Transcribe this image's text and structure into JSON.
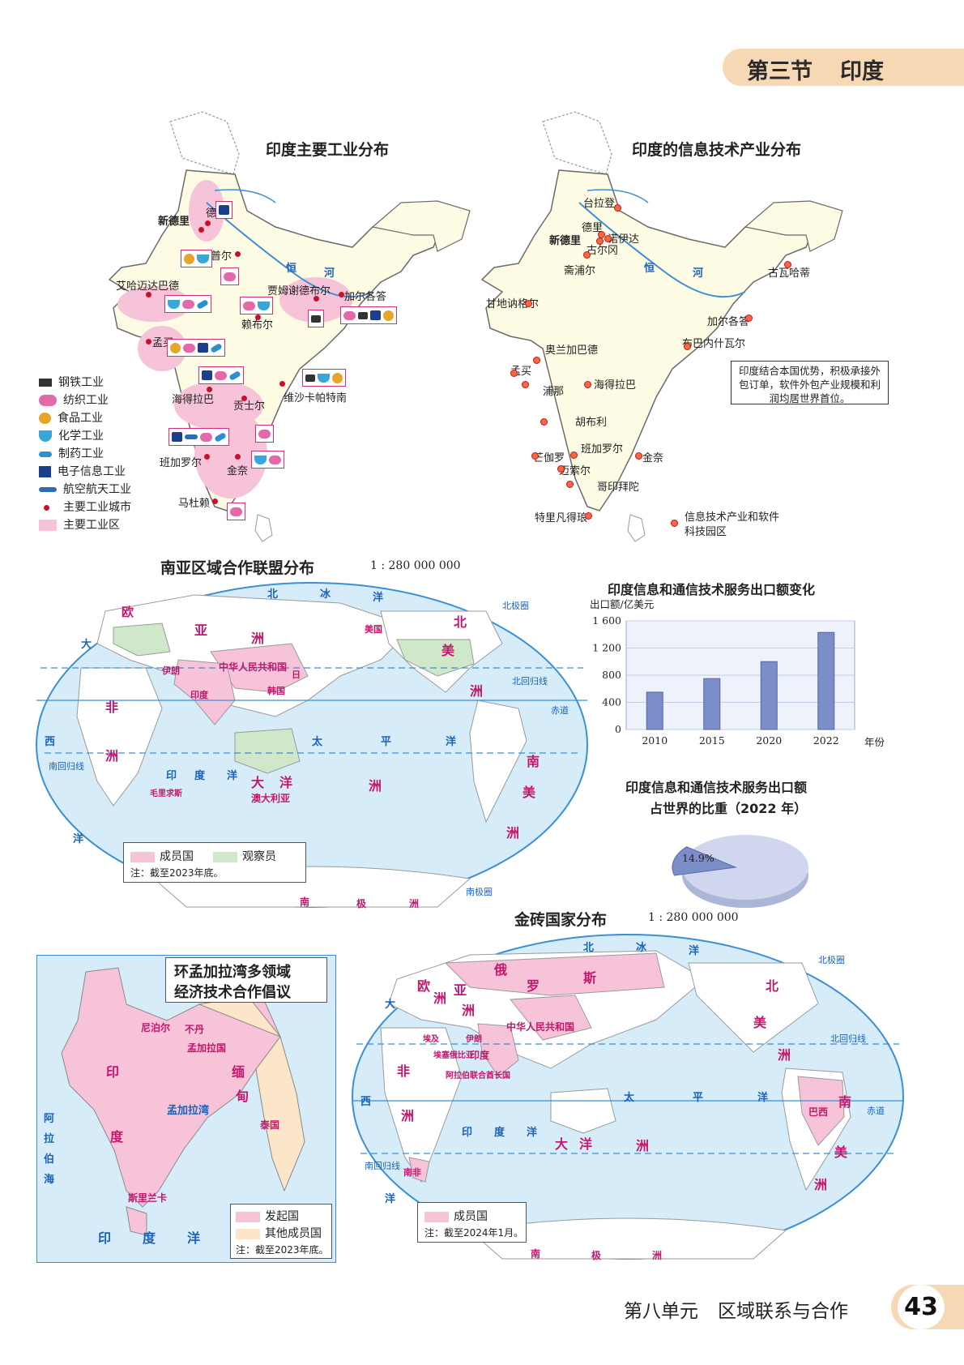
{
  "header": {
    "section": "第三节",
    "country": "印度"
  },
  "industry_map": {
    "title": "印度主要工业分布",
    "cities": [
      "新德里",
      "德里",
      "坎普尔",
      "艾哈迈达巴德",
      "贾姆谢德布尔",
      "加尔各答",
      "赖布尔",
      "孟买",
      "海得拉巴",
      "贡士尔",
      "维沙卡帕特南",
      "班加罗尔",
      "金奈",
      "马杜赖"
    ],
    "river": [
      "恒",
      "河"
    ],
    "legend": [
      "钢铁工业",
      "纺织工业",
      "食品工业",
      "化学工业",
      "制药工业",
      "电子信息工业",
      "航空航天工业",
      "主要工业城市",
      "主要工业区"
    ]
  },
  "it_map": {
    "title": "印度的信息技术产业分布",
    "cities": [
      "台拉登",
      "德里",
      "新德里",
      "诺伊达",
      "古尔冈",
      "斋浦尔",
      "古瓦哈蒂",
      "甘地讷格尔",
      "加尔各答",
      "奥兰加巴德",
      "布巴内什瓦尔",
      "孟买",
      "海得拉巴",
      "浦那",
      "胡布利",
      "芒伽罗",
      "班加罗尔",
      "金奈",
      "迈索尔",
      "哥印拜陀",
      "特里凡得琅"
    ],
    "river": [
      "恒",
      "河"
    ],
    "callout": "印度结合本国优势，积极承接外包订单，软件外包产业规模和利润均居世界首位。",
    "legend": "信息技术产业和软件科技园区"
  },
  "saarc_map": {
    "title": "南亚区域合作联盟分布",
    "scale": "1 : 280 000 000",
    "labels": {
      "north_ocean": [
        "北",
        "冰",
        "洋"
      ],
      "asia": [
        "亚",
        "洲"
      ],
      "europe": [
        "欧"
      ],
      "china": "中华人民共和国",
      "na": [
        "北",
        "美",
        "洲"
      ],
      "africa": [
        "非",
        "洲"
      ],
      "pacific": [
        "太",
        "平",
        "洋"
      ],
      "indian": [
        "印",
        "度",
        "洋"
      ],
      "oceania": [
        "大",
        "洋",
        "洲"
      ],
      "australia": "澳大利亚",
      "sa": [
        "南",
        "美",
        "洲"
      ],
      "atlantic": [
        "大",
        "西",
        "洋"
      ],
      "antarctica": [
        "南",
        "极",
        "洲"
      ],
      "tropic_n": "北回归线",
      "tropic_s": "南回归线",
      "equator": "赤道",
      "arctic_circle": "北极圈",
      "antarctic_circle": "南极圈",
      "usa": "美国",
      "korea": "韩国",
      "japan": "日",
      "iran": "伊朗",
      "india": "印度",
      "mauritius": "毛里求斯"
    },
    "legend": {
      "member": "成员国",
      "observer": "观察员",
      "note": "注：截至2023年底。"
    }
  },
  "bar_chart_title": "印度信息和通信技术服务出口额变化",
  "chart_data": [
    {
      "type": "bar",
      "title": "印度信息和通信技术服务出口额变化",
      "ylabel": "出口额/亿美元",
      "xlabel": "年份",
      "categories": [
        "2010",
        "2015",
        "2020",
        "2022"
      ],
      "values": [
        550,
        750,
        1000,
        1430
      ],
      "ylim": [
        0,
        1600
      ],
      "yticks": [
        "0",
        "400",
        "800",
        "1 200",
        "1 600"
      ],
      "grid": true
    },
    {
      "type": "pie",
      "title": "印度信息和通信技术服务出口额占世界的比重（2022 年）",
      "values": [
        14.9,
        85.1
      ],
      "labels": [
        "14.9%",
        ""
      ]
    }
  ],
  "pie_title_line1": "印度信息和通信技术服务出口额",
  "pie_title_line2": "占世界的比重（2022 年）",
  "pie_label": "14.9%",
  "bimstec_map": {
    "title_line1": "环孟加拉湾多领域",
    "title_line2": "经济技术合作倡议",
    "labels": {
      "india": [
        "印",
        "度"
      ],
      "nepal": "尼泊尔",
      "bhutan": "不丹",
      "bangladesh": "孟加拉国",
      "myanmar": [
        "缅",
        "甸"
      ],
      "thailand": "泰国",
      "srilanka": "斯里兰卡",
      "bay": "孟加拉湾",
      "arabian": [
        "阿",
        "拉",
        "伯",
        "海"
      ],
      "indian_ocean": [
        "印",
        "度",
        "洋"
      ]
    },
    "legend": {
      "founder": "发起国",
      "other": "其他成员国",
      "note": "注：截至2023年底。"
    }
  },
  "brics_map": {
    "title": "金砖国家分布",
    "scale": "1 : 280 000 000",
    "labels": {
      "russia": [
        "俄",
        "罗",
        "斯"
      ],
      "brazil": "巴西",
      "china": "中华人民共和国",
      "india": "印度",
      "south_africa": "南非",
      "egypt": "埃及",
      "ethiopia": "埃塞俄比亚",
      "uae": "阿拉伯联合酋长国",
      "iran": "伊朗",
      "north_ocean": [
        "北",
        "冰",
        "洋"
      ],
      "pacific": [
        "太",
        "平",
        "洋"
      ],
      "indian": [
        "印",
        "度",
        "洋"
      ],
      "atlantic": [
        "大",
        "西",
        "洋"
      ],
      "antarctica": [
        "南",
        "极",
        "洲"
      ],
      "oceania": [
        "大",
        "洋",
        "洲"
      ],
      "asia": [
        "亚",
        "洲"
      ],
      "europe": [
        "欧",
        "洲"
      ],
      "africa": [
        "非",
        "洲"
      ],
      "na": [
        "北",
        "美",
        "洲"
      ],
      "sa": [
        "南",
        "美",
        "洲"
      ],
      "tropic_n": "北回归线",
      "tropic_s": "南回归线",
      "equator": "赤道",
      "arctic_circle": "北极圈"
    },
    "legend": {
      "member": "成员国",
      "note": "注：截至2024年1月。"
    }
  },
  "footer": {
    "unit": "第八单元",
    "title": "区域联系与合作",
    "page": "43"
  },
  "colors": {
    "ocean": "#d6ecf8",
    "land": "#fdfbe4",
    "member": "#f7c3d8",
    "observer": "#cfe8c9",
    "accent_pink": "#d2327a",
    "tab": "#f6d8b5",
    "bar": "#7c8ec9"
  }
}
